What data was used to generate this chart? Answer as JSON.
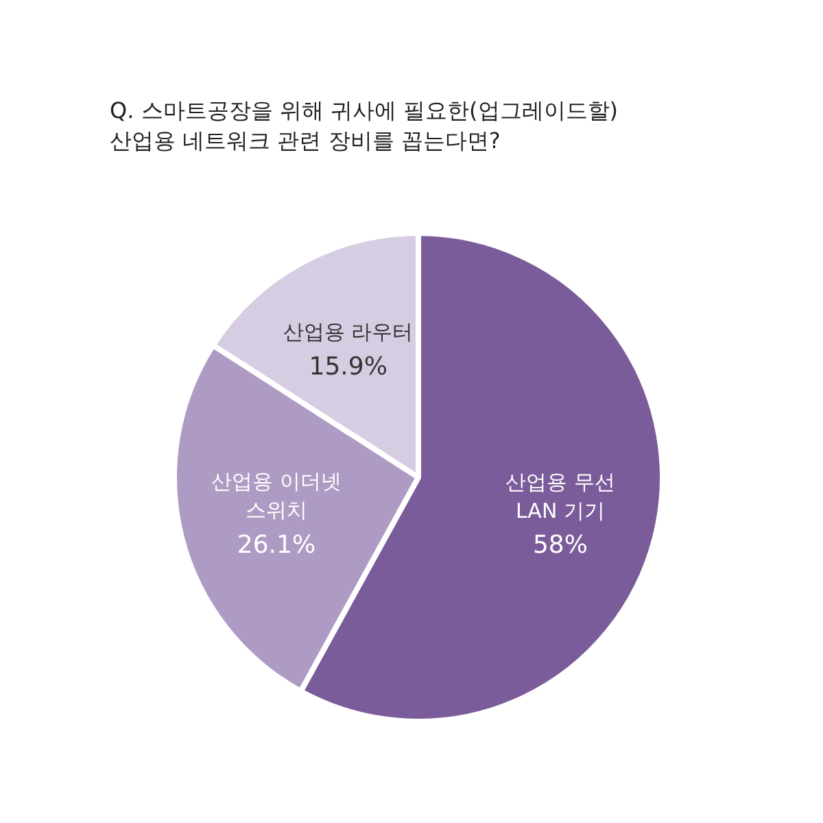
{
  "chart_data": {
    "type": "pie",
    "title": "Q. 스마트공장을 위해 귀사에 필요한(업그레이드할)\n산업용 네트워크 관련 장비를 꼽는다면?",
    "categories": [
      "산업용 무선 LAN 기기",
      "산업용 이더넷 스위치",
      "산업용 라우터"
    ],
    "values": [
      58,
      26.1,
      15.9
    ],
    "colors": [
      "#7b5c9a",
      "#ae9bc3",
      "#d6cde2"
    ],
    "value_labels": [
      "58%",
      "26.1%",
      "15.9%"
    ],
    "legend": false
  }
}
